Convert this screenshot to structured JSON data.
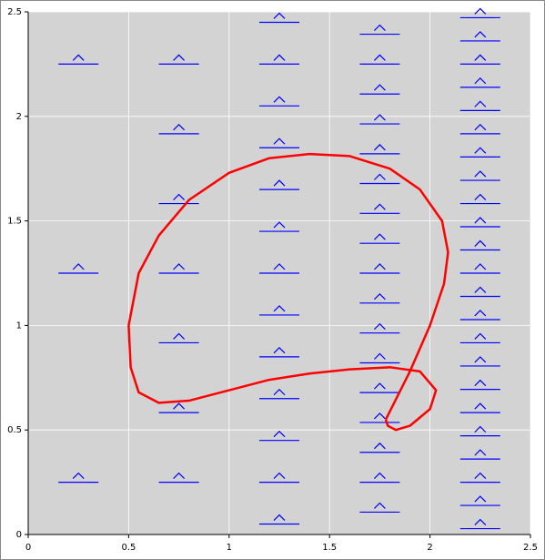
{
  "chart_data": {
    "type": "scatter",
    "xlim": [
      0,
      2.5
    ],
    "ylim": [
      0,
      2.5
    ],
    "xticks": [
      0,
      0.5,
      1,
      1.5,
      2,
      2.5
    ],
    "yticks": [
      0,
      0.5,
      1,
      1.5,
      2,
      2.5
    ],
    "grid": true,
    "background": "#d3d3d3",
    "series": [
      {
        "type": "scatter",
        "color": "#0000ff",
        "x": [
          0.25,
          0.25,
          0.25
        ],
        "values": [
          0.25,
          1.25,
          2.25
        ]
      },
      {
        "type": "scatter",
        "color": "#0000ff",
        "x": [
          0.75,
          0.75,
          0.75,
          0.75,
          0.75,
          0.75,
          0.75
        ],
        "values": [
          0.25,
          0.583,
          0.917,
          1.25,
          1.583,
          1.917,
          2.25
        ]
      },
      {
        "type": "scatter",
        "color": "#0000ff",
        "x": [
          1.25,
          1.25,
          1.25,
          1.25,
          1.25,
          1.25,
          1.25,
          1.25,
          1.25,
          1.25,
          1.25,
          1.25,
          1.25
        ],
        "values": [
          0.05,
          0.25,
          0.45,
          0.65,
          0.85,
          1.05,
          1.25,
          1.45,
          1.65,
          1.85,
          2.05,
          2.25,
          2.45
        ]
      },
      {
        "type": "scatter",
        "color": "#0000ff",
        "x": [
          1.75,
          1.75,
          1.75,
          1.75,
          1.75,
          1.75,
          1.75,
          1.75,
          1.75,
          1.75,
          1.75,
          1.75,
          1.75,
          1.75,
          1.75,
          1.75,
          1.75
        ],
        "values": [
          0.107,
          0.25,
          0.393,
          0.536,
          0.679,
          0.821,
          0.964,
          1.107,
          1.25,
          1.393,
          1.536,
          1.679,
          1.821,
          1.964,
          2.107,
          2.25,
          2.393
        ]
      },
      {
        "type": "scatter",
        "color": "#0000ff",
        "x": [
          2.25,
          2.25,
          2.25,
          2.25,
          2.25,
          2.25,
          2.25,
          2.25,
          2.25,
          2.25,
          2.25,
          2.25,
          2.25,
          2.25,
          2.25,
          2.25,
          2.25,
          2.25,
          2.25,
          2.25,
          2.25,
          2.25,
          2.25
        ],
        "values": [
          0.028,
          0.139,
          0.25,
          0.361,
          0.472,
          0.583,
          0.694,
          0.806,
          0.917,
          1.028,
          1.139,
          1.25,
          1.361,
          1.472,
          1.583,
          1.694,
          1.806,
          1.917,
          2.028,
          2.139,
          2.25,
          2.361,
          2.472
        ]
      },
      {
        "type": "line",
        "color": "#ff0000",
        "x": [
          1.78,
          1.9,
          2.0,
          2.07,
          2.09,
          2.06,
          1.95,
          1.8,
          1.6,
          1.4,
          1.2,
          1.0,
          0.8,
          0.65,
          0.55,
          0.5,
          0.51,
          0.55,
          0.65,
          0.8,
          1.0,
          1.2,
          1.4,
          1.6,
          1.8,
          1.95,
          2.03,
          2.0,
          1.9,
          1.83,
          1.79,
          1.78
        ],
        "values": [
          0.55,
          0.78,
          1.0,
          1.2,
          1.35,
          1.5,
          1.65,
          1.75,
          1.81,
          1.82,
          1.8,
          1.73,
          1.6,
          1.43,
          1.25,
          1.0,
          0.8,
          0.68,
          0.63,
          0.64,
          0.69,
          0.74,
          0.77,
          0.79,
          0.8,
          0.78,
          0.69,
          0.6,
          0.52,
          0.5,
          0.52,
          0.55
        ]
      }
    ]
  }
}
